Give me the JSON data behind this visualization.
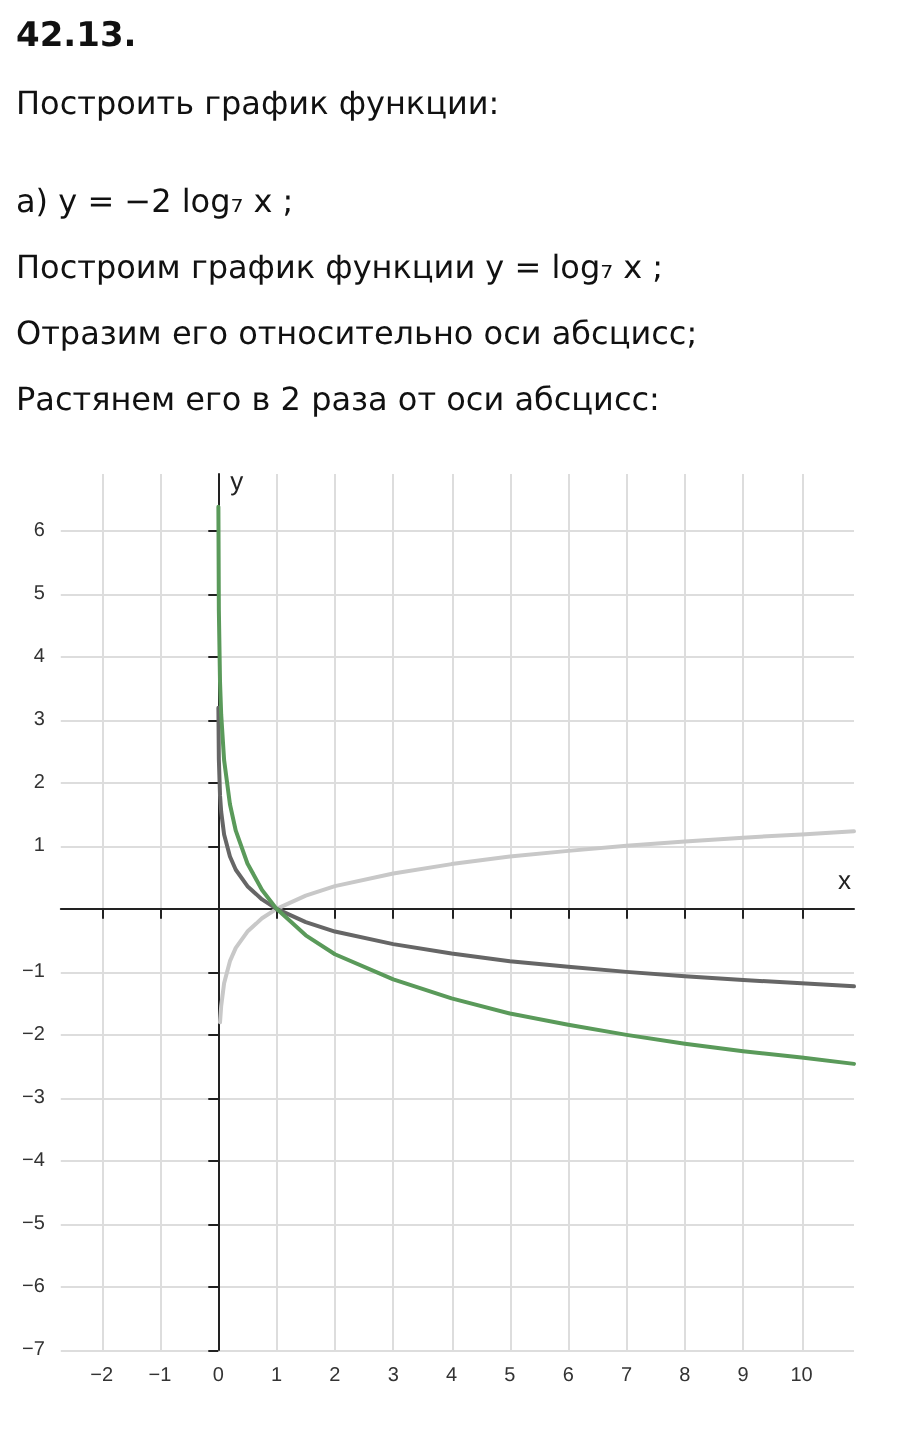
{
  "chart_data": {
    "type": "line",
    "title": "42.13.",
    "subtitle": "Построить график функции:",
    "annotations": [
      "а) y = −2 log₇ x ;",
      "Построим график функции y = log₇ x ;",
      "Отразим его относительно оси абсцисс;",
      "Растянем его в 2 раза от оси абсцисс:"
    ],
    "xlabel": "x",
    "ylabel": "y",
    "xlim": [
      -2.7,
      10.9
    ],
    "ylim": [
      -7,
      6.9
    ],
    "xticks": [
      -2,
      -1,
      0,
      1,
      2,
      3,
      4,
      5,
      6,
      7,
      8,
      9,
      10
    ],
    "yticks": [
      -7,
      -6,
      -5,
      -4,
      -3,
      -2,
      -1,
      1,
      2,
      3,
      4,
      5,
      6
    ],
    "grid": true,
    "marker": "none",
    "line_style": "solid",
    "series": [
      {
        "color": "#c8c8c8",
        "x": [
          0.03,
          0.05,
          0.1,
          0.2,
          0.3,
          0.5,
          0.75,
          1,
          1.5,
          2,
          3,
          4,
          5,
          6,
          7,
          8,
          9,
          10,
          10.9
        ],
        "values": [
          -1.8,
          -1.54,
          -1.18,
          -0.83,
          -0.62,
          -0.36,
          -0.15,
          0,
          0.21,
          0.36,
          0.56,
          0.71,
          0.83,
          0.92,
          1,
          1.07,
          1.13,
          1.18,
          1.23
        ]
      },
      {
        "color": "#666666",
        "x": [
          0.002,
          0.01,
          0.03,
          0.05,
          0.1,
          0.2,
          0.3,
          0.5,
          0.75,
          1,
          1.5,
          2,
          3,
          4,
          5,
          6,
          7,
          8,
          9,
          10,
          10.9
        ],
        "values": [
          3.19,
          2.37,
          1.8,
          1.54,
          1.18,
          0.83,
          0.62,
          0.36,
          0.15,
          0,
          -0.21,
          -0.36,
          -0.56,
          -0.71,
          -0.83,
          -0.92,
          -1,
          -1.07,
          -1.13,
          -1.18,
          -1.23
        ]
      },
      {
        "color": "#5a9a5a",
        "x": [
          0.002,
          0.01,
          0.03,
          0.05,
          0.1,
          0.2,
          0.3,
          0.5,
          0.75,
          1,
          1.5,
          2,
          3,
          4,
          5,
          6,
          7,
          8,
          9,
          10,
          10.9
        ],
        "values": [
          6.38,
          4.74,
          3.6,
          3.08,
          2.36,
          1.66,
          1.24,
          0.72,
          0.3,
          0,
          -0.42,
          -0.72,
          -1.12,
          -1.42,
          -1.66,
          -1.84,
          -2,
          -2.14,
          -2.26,
          -2.36,
          -2.46
        ]
      }
    ]
  }
}
